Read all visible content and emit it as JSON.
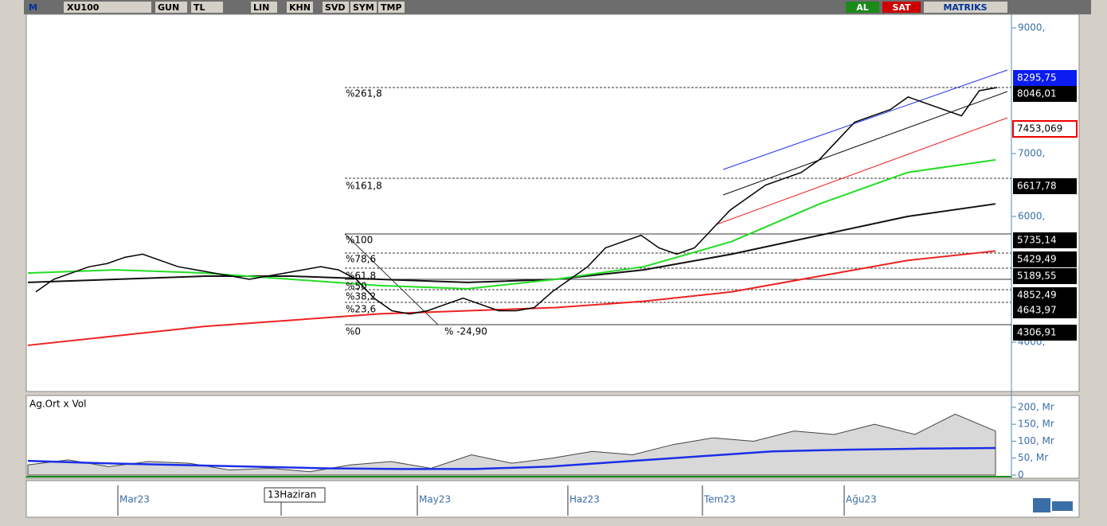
{
  "toolbar": {
    "logo": "M",
    "symbol": "XU100",
    "buttons": [
      "GUN",
      "TL",
      "LIN",
      "KHN",
      "SVD",
      "SYM",
      "TMP"
    ],
    "buy": "AL",
    "sell": "SAT",
    "brand": "MATRIKS"
  },
  "price_panel": {
    "ylim": [
      3215,
      9215
    ],
    "yticks": [
      {
        "value": 9000,
        "label": "9000,"
      },
      {
        "value": 7000,
        "label": "7000,"
      },
      {
        "value": 6000,
        "label": "6000,"
      },
      {
        "value": 4000,
        "label": "4000,"
      }
    ],
    "close": [
      4800,
      5000,
      5100,
      5200,
      5250,
      5350,
      5400,
      5300,
      5200,
      5150,
      5100,
      5050,
      5000,
      5050,
      5100,
      5150,
      5200,
      5150,
      5000,
      4700,
      4500,
      4450,
      4500,
      4600,
      4700,
      4600,
      4500,
      4500,
      4550,
      4800,
      5000,
      5200,
      5500,
      5600,
      5700,
      5500,
      5400,
      5500,
      5800,
      6100,
      6300,
      6500,
      6600,
      6700,
      6900,
      7200,
      7500,
      7600,
      7700,
      7900,
      7800,
      7700,
      7600,
      8000,
      8050
    ],
    "ma_green": [
      5100,
      5150,
      5100,
      5000,
      4900,
      4850,
      5000,
      5200,
      5600,
      6200,
      6700,
      6900
    ],
    "ma_black": [
      4950,
      5000,
      5050,
      5050,
      5000,
      4950,
      5000,
      5150,
      5400,
      5700,
      6000,
      6200
    ],
    "ma_red": [
      3950,
      4100,
      4250,
      4350,
      4450,
      4500,
      4550,
      4650,
      4800,
      5050,
      5300,
      5450
    ],
    "fib_labels": [
      "%261,8",
      "%161,8",
      "%100",
      "%78,6",
      "%61,8",
      "%50",
      "%38,2",
      "%23,6",
      "%0"
    ],
    "change_label": "% -24,90",
    "price_tags": [
      "8295,75",
      "8046,01",
      "7453,069",
      "6617,78",
      "5735,14",
      "5429,49",
      "5189,55",
      "4852,49",
      "4643,97",
      "4306,91"
    ]
  },
  "volume_panel": {
    "title": "Ag.Ort x Vol",
    "ylim": [
      0,
      235
    ],
    "yticks": [
      {
        "value": 200,
        "label": "200, Mr"
      },
      {
        "value": 150,
        "label": "150, Mr"
      },
      {
        "value": 100,
        "label": "100, Mr"
      },
      {
        "value": 50,
        "label": "50, Mr"
      },
      0
    ],
    "volume": [
      30,
      45,
      25,
      40,
      35,
      15,
      20,
      10,
      30,
      40,
      20,
      60,
      35,
      50,
      70,
      60,
      90,
      110,
      100,
      130,
      120,
      150,
      120,
      180,
      130
    ],
    "average": [
      42,
      35,
      30,
      25,
      20,
      18,
      18,
      25,
      40,
      55,
      70,
      75,
      78,
      80
    ]
  },
  "x_axis": {
    "labels": [
      "Mar23",
      "May23",
      "Haz23",
      "Tem23",
      "Ağu23"
    ],
    "cursor_label": "13Haziran"
  }
}
